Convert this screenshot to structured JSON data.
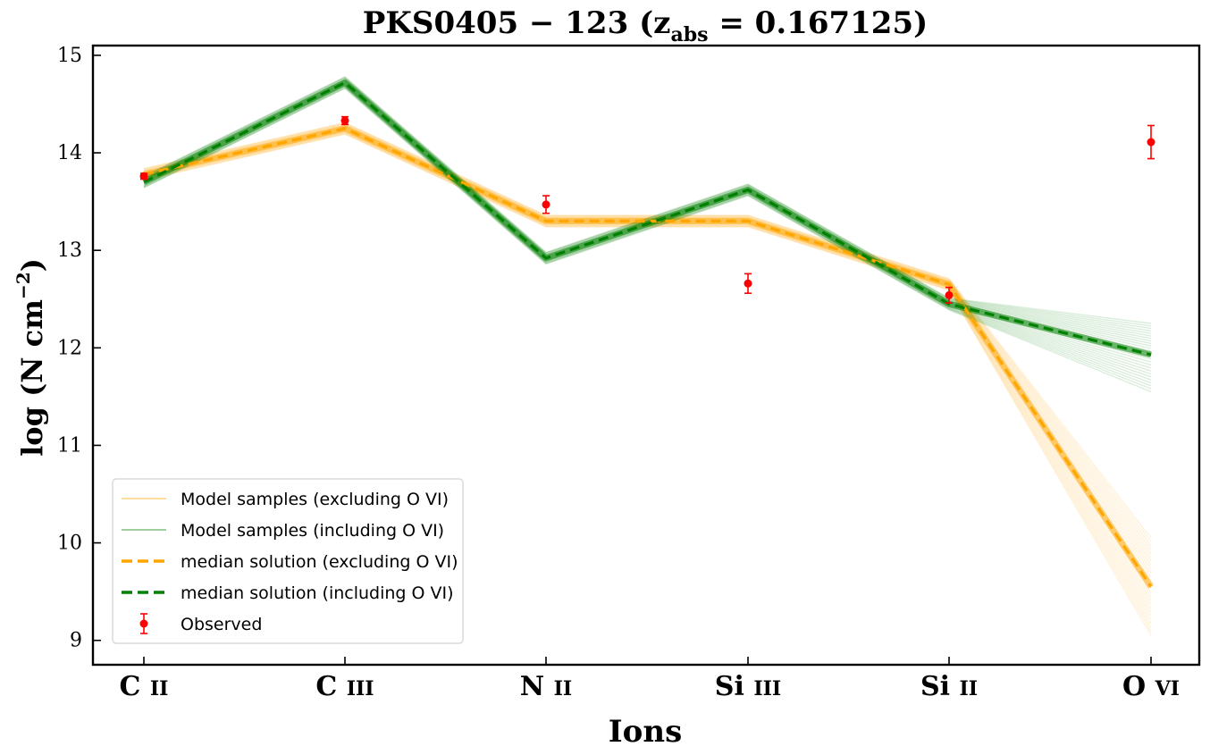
{
  "chart_data": {
    "type": "line",
    "title_main": "PKS0405 − 123 (z",
    "title_sub": "abs",
    "title_tail": " = 0.167125)",
    "xlabel": "Ions",
    "ylabel": "log (N cm",
    "ylabel_sup": "−2",
    "ylabel_close": ")",
    "categories": [
      {
        "el": "C",
        "stage": "II"
      },
      {
        "el": "C",
        "stage": "III"
      },
      {
        "el": "N",
        "stage": "II"
      },
      {
        "el": "Si",
        "stage": "III"
      },
      {
        "el": "Si",
        "stage": "II"
      },
      {
        "el": "O",
        "stage": "VI"
      }
    ],
    "ylim": [
      8.75,
      15.1
    ],
    "yticks": [
      "9",
      "10",
      "11",
      "12",
      "13",
      "14",
      "15"
    ],
    "grid": false,
    "legend_position": "lower-left",
    "legend": {
      "samples_excl": "Model samples (excluding O VI)",
      "samples_incl": "Model samples (including O VI)",
      "median_excl": "median solution (excluding O VI)",
      "median_incl": "median solution (including O VI)",
      "observed": "Observed"
    },
    "series": [
      {
        "name": "median solution (excluding O VI)",
        "color": "#FFA500",
        "values": [
          13.78,
          14.25,
          13.3,
          13.3,
          12.65,
          9.55
        ]
      },
      {
        "name": "median solution (including O VI)",
        "color": "#008000",
        "values": [
          13.7,
          14.72,
          12.92,
          13.62,
          12.45,
          11.93
        ]
      }
    ],
    "observed": {
      "name": "Observed",
      "color": "#FF0000",
      "values": [
        13.76,
        14.33,
        13.47,
        12.66,
        12.54,
        14.11
      ],
      "errors": [
        0.03,
        0.04,
        0.09,
        0.1,
        0.08,
        0.17
      ]
    },
    "sample_spread": {
      "excl_last_low": 9.05,
      "excl_last_high": 10.05,
      "incl_last_low": 11.55,
      "incl_last_high": 12.25
    }
  }
}
